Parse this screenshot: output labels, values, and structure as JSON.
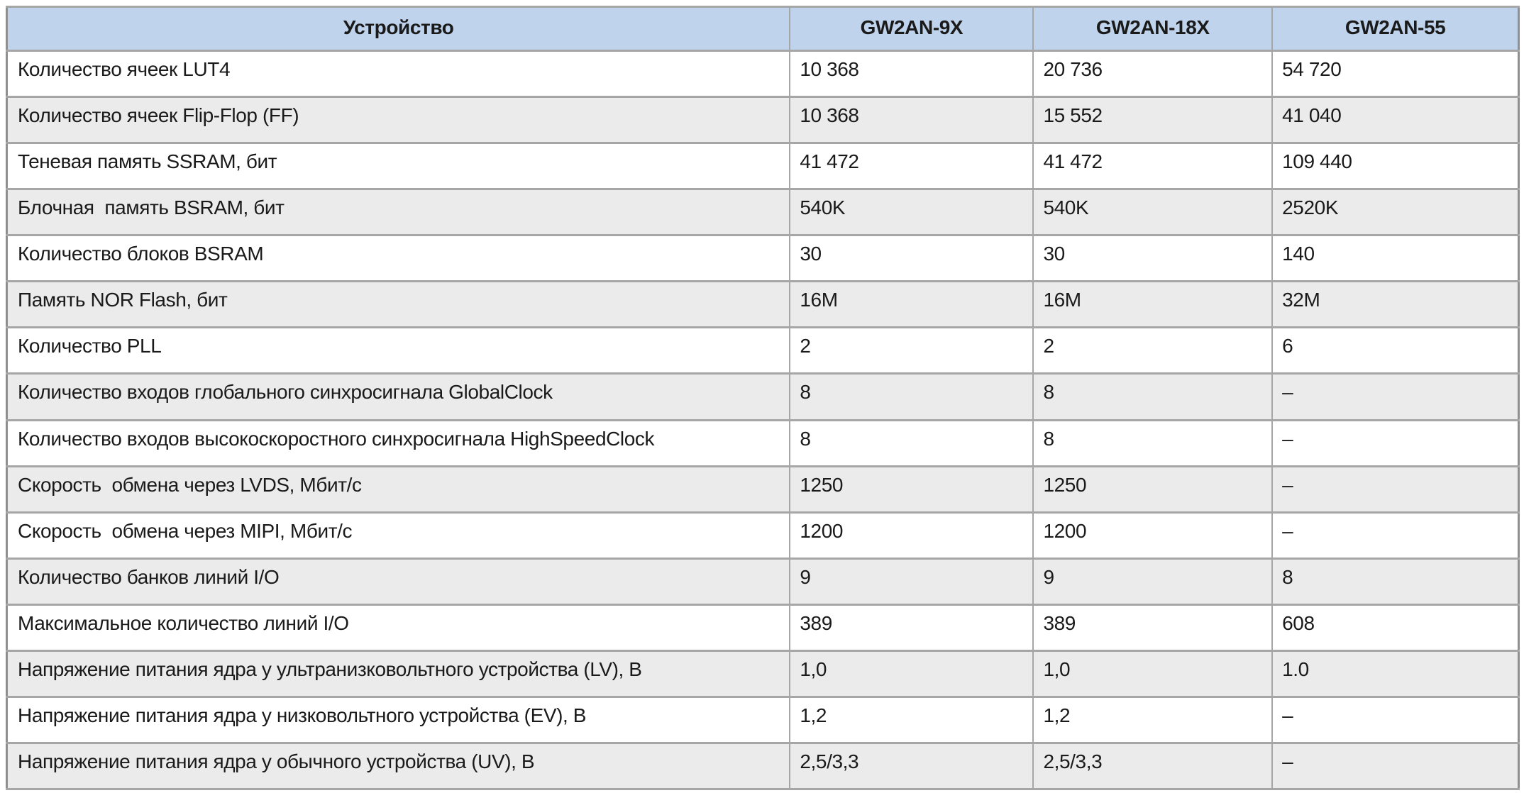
{
  "table": {
    "title_column": "Устройство",
    "columns": [
      {
        "label": "Устройство"
      },
      {
        "label": "GW2AN-9X"
      },
      {
        "label": "GW2AN-18X"
      },
      {
        "label": "GW2AN-55"
      }
    ],
    "rows": [
      {
        "label": "Количество ячеек LUT4",
        "values": [
          "10 368",
          "20 736",
          "54 720"
        ]
      },
      {
        "label": "Количество ячеек Flip-Flop (FF)",
        "values": [
          "10 368",
          "15 552",
          "41 040"
        ]
      },
      {
        "label": "Теневая память SSRAM, бит",
        "values": [
          "41 472",
          "41 472",
          "109 440"
        ]
      },
      {
        "label": "Блочная  память BSRAM, бит",
        "values": [
          "540K",
          "540K",
          "2520K"
        ]
      },
      {
        "label": "Количество блоков BSRAM",
        "values": [
          "30",
          "30",
          "140"
        ]
      },
      {
        "label": "Память NOR Flash, бит",
        "values": [
          "16M",
          "16M",
          "32M"
        ]
      },
      {
        "label": "Количество PLL",
        "values": [
          "2",
          "2",
          "6"
        ]
      },
      {
        "label": "Количество входов глобального синхросигнала GlobalClock",
        "values": [
          "8",
          "8",
          "–"
        ]
      },
      {
        "label": "Количество входов высокоскоростного синхросигнала HighSpeedClock",
        "values": [
          "8",
          "8",
          "–"
        ]
      },
      {
        "label": "Скорость  обмена через LVDS, Мбит/с",
        "values": [
          "1250",
          "1250",
          "–"
        ]
      },
      {
        "label": "Скорость  обмена через MIPI, Мбит/с",
        "values": [
          "1200",
          "1200",
          "–"
        ]
      },
      {
        "label": "Количество банков линий I/O",
        "values": [
          "9",
          "9",
          "8"
        ]
      },
      {
        "label": "Максимальное количество линий I/O",
        "values": [
          "389",
          "389",
          "608"
        ]
      },
      {
        "label": "Напряжение питания ядра у ультранизковольтного устройства (LV), В",
        "values": [
          "1,0",
          "1,0",
          "1.0"
        ]
      },
      {
        "label": "Напряжение питания ядра у низковольтного устройства (EV), В",
        "values": [
          "1,2",
          "1,2",
          "–"
        ]
      },
      {
        "label": "Напряжение питания ядра у обычного устройства (UV), В",
        "values": [
          "2,5/3,3",
          "2,5/3,3",
          "–"
        ]
      }
    ],
    "colors": {
      "header_bg": "#bfd4ec",
      "row_bg": "#ffffff",
      "row_alt_bg": "#ebebeb",
      "border_inner": "#a6a6a6",
      "border_outer": "#8f8f8f",
      "text": "#1a1a1a"
    }
  }
}
